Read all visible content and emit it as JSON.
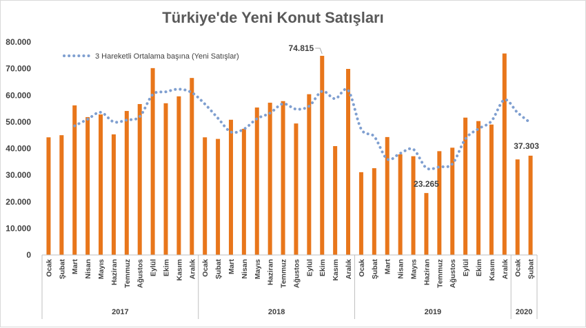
{
  "chart_data": {
    "type": "bar",
    "title": "Türkiye'de Yeni Konut Satışları",
    "ylim": [
      0,
      80000
    ],
    "y_ticks": [
      "0",
      "10.000",
      "20.000",
      "30.000",
      "40.000",
      "50.000",
      "60.000",
      "70.000",
      "80.000"
    ],
    "y_tick_values": [
      0,
      10000,
      20000,
      30000,
      40000,
      50000,
      60000,
      70000,
      80000
    ],
    "categories": [
      "Ocak",
      "Şubat",
      "Mart",
      "Nisan",
      "Mayıs",
      "Haziran",
      "Temmuz",
      "Ağustos",
      "Eylül",
      "Ekim",
      "Kasım",
      "Aralık",
      "Ocak",
      "Şubat",
      "Mart",
      "Nisan",
      "Mayıs",
      "Haziran",
      "Temmuz",
      "Ağustos",
      "Eylül",
      "Ekim",
      "Kasım",
      "Aralık",
      "Ocak",
      "Şubat",
      "Mart",
      "Nisan",
      "Mayıs",
      "Haziran",
      "Temmuz",
      "Ağustos",
      "Eylül",
      "Ekim",
      "Kasım",
      "Aralık",
      "Ocak",
      "Şubat"
    ],
    "years": [
      {
        "label": "2017",
        "start": 0,
        "count": 12
      },
      {
        "label": "2018",
        "start": 12,
        "count": 12
      },
      {
        "label": "2019",
        "start": 24,
        "count": 12
      },
      {
        "label": "2020",
        "start": 36,
        "count": 2
      }
    ],
    "series": [
      {
        "type": "bar",
        "color": "#e8761b",
        "values": [
          44200,
          45000,
          56200,
          51800,
          52800,
          45300,
          54100,
          56700,
          70200,
          57000,
          59600,
          66500,
          44200,
          43600,
          50800,
          47400,
          55400,
          57200,
          57800,
          49400,
          60400,
          74815,
          40900,
          69900,
          31100,
          32600,
          44300,
          37800,
          37100,
          23265,
          39000,
          40300,
          51600,
          50300,
          49000,
          75700,
          35900,
          37303
        ]
      },
      {
        "type": "line",
        "name": "3 Hareketli Ortalama başına (Yeni Satışlar)",
        "color": "#7f9fd0",
        "values": [
          null,
          null,
          48500,
          51000,
          53600,
          50000,
          50700,
          52000,
          60300,
          61300,
          62300,
          61000,
          56700,
          51400,
          46200,
          47300,
          51200,
          53300,
          56800,
          54800,
          55900,
          61500,
          58700,
          61900,
          47300,
          44500,
          36000,
          38200,
          39700,
          32700,
          33100,
          34200,
          43600,
          47400,
          50300,
          58300,
          53500,
          49600
        ]
      }
    ],
    "data_labels": [
      {
        "index": 21,
        "text": "74.815"
      },
      {
        "index": 29,
        "text": "23.265"
      },
      {
        "index": 37,
        "text": "37.303"
      }
    ],
    "legend": {
      "text": "3 Hareketli Ortalama başına (Yeni Satışlar)",
      "position": "top-left"
    },
    "grid": false
  }
}
